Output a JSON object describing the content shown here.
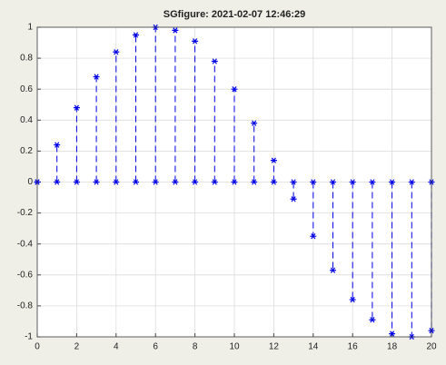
{
  "chart_data": {
    "type": "stem",
    "title": "SGfigure: 2021-02-07 12:46:29",
    "x": [
      0,
      1,
      2,
      3,
      4,
      5,
      6,
      7,
      8,
      9,
      10,
      11,
      12,
      13,
      14,
      15,
      16,
      17,
      18,
      19,
      20
    ],
    "series": [
      {
        "color": "#0000e6",
        "values": [
          0,
          0.24,
          0.48,
          0.68,
          0.84,
          0.95,
          1.0,
          0.98,
          0.91,
          0.78,
          0.6,
          0.38,
          0.14,
          -0.11,
          -0.35,
          -0.57,
          -0.76,
          -0.89,
          -0.98,
          -1.0,
          -0.96
        ]
      }
    ],
    "xlim": [
      0,
      20
    ],
    "xticks": [
      0,
      2,
      4,
      6,
      8,
      10,
      12,
      14,
      16,
      18,
      20
    ],
    "ylim": [
      -1,
      1
    ],
    "yticks": [
      -1,
      -0.8,
      -0.6,
      -0.4,
      -0.2,
      0,
      0.2,
      0.4,
      0.6,
      0.8,
      1
    ],
    "grid": true
  }
}
